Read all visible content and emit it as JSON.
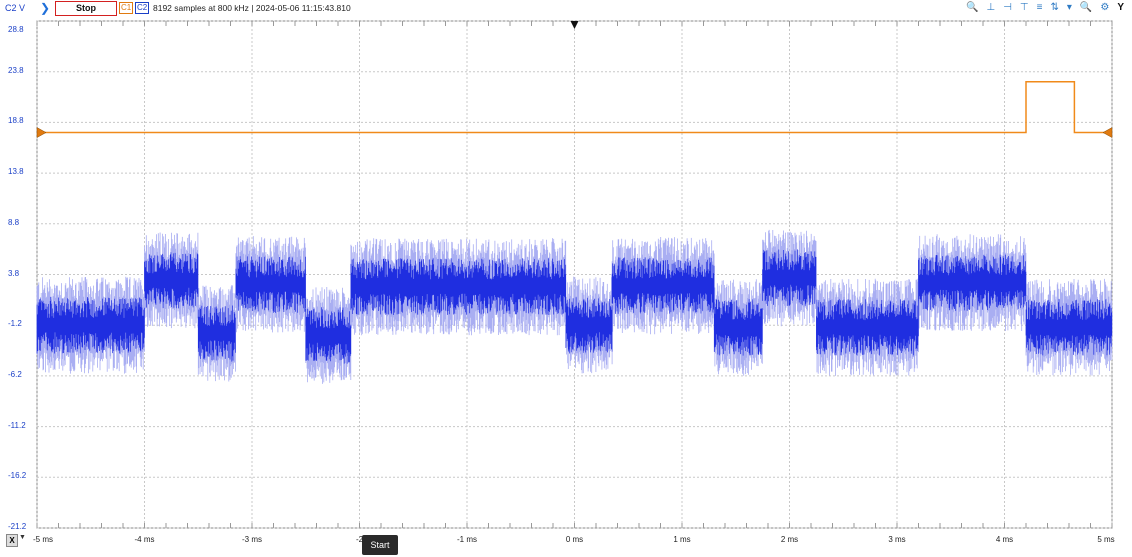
{
  "toolbar": {
    "channel_label": "C2 V",
    "stop_label": "Stop",
    "ch1_label": "C1",
    "ch2_label": "C2",
    "info": "8192 samples at 800 kHz  |  2024-05-06 11:15:43.810",
    "y_button": "Y",
    "icons": [
      "zoom-in-icon",
      "cursor-icon",
      "horizontal-measure-icon",
      "vertical-measure-icon",
      "stack-icon",
      "scale-icon",
      "dropdown-icon",
      "zoom-out-icon",
      "settings-icon"
    ]
  },
  "axis": {
    "y_ticks": [
      "28.8",
      "23.8",
      "18.8",
      "13.8",
      "8.8",
      "3.8",
      "-1.2",
      "-6.2",
      "-11.2",
      "-16.2",
      "-21.2"
    ],
    "x_ticks": [
      "-5 ms",
      "-4 ms",
      "-3 ms",
      "-2",
      "-1 ms",
      "0 ms",
      "1 ms",
      "2 ms",
      "3 ms",
      "4 ms",
      "5 ms"
    ],
    "x_button": "X"
  },
  "tooltip": {
    "start": "Start"
  },
  "chart_data": {
    "type": "line",
    "ylim": [
      -21.2,
      28.8
    ],
    "xlim": [
      -5,
      5
    ],
    "series": [
      {
        "name": "C1",
        "color": "#f08a1a",
        "x": [
          -5,
          4.2,
          4.2,
          4.65,
          4.65,
          5
        ],
        "y": [
          17.8,
          17.8,
          22.8,
          22.8,
          17.8,
          17.8
        ]
      },
      {
        "name": "C2",
        "color": "#1f2ee0",
        "segments": [
          {
            "x0": -5.0,
            "x1": -4.0,
            "center": -1.2
          },
          {
            "x0": -4.0,
            "x1": -3.5,
            "center": 3.2
          },
          {
            "x0": -3.5,
            "x1": -3.15,
            "center": -2.0
          },
          {
            "x0": -3.15,
            "x1": -2.5,
            "center": 2.8
          },
          {
            "x0": -2.5,
            "x1": -2.08,
            "center": -2.2
          },
          {
            "x0": -2.08,
            "x1": -0.08,
            "center": 2.6
          },
          {
            "x0": -0.08,
            "x1": 0.35,
            "center": -1.2
          },
          {
            "x0": 0.35,
            "x1": 1.3,
            "center": 2.7
          },
          {
            "x0": 1.3,
            "x1": 1.75,
            "center": -1.4
          },
          {
            "x0": 1.75,
            "x1": 2.25,
            "center": 3.5
          },
          {
            "x0": 2.25,
            "x1": 3.2,
            "center": -1.4
          },
          {
            "x0": 3.2,
            "x1": 4.2,
            "center": 3.0
          },
          {
            "x0": 4.2,
            "x1": 5.0,
            "center": -1.4
          }
        ],
        "noise_amplitude": 3.5
      }
    ],
    "grid": true
  }
}
